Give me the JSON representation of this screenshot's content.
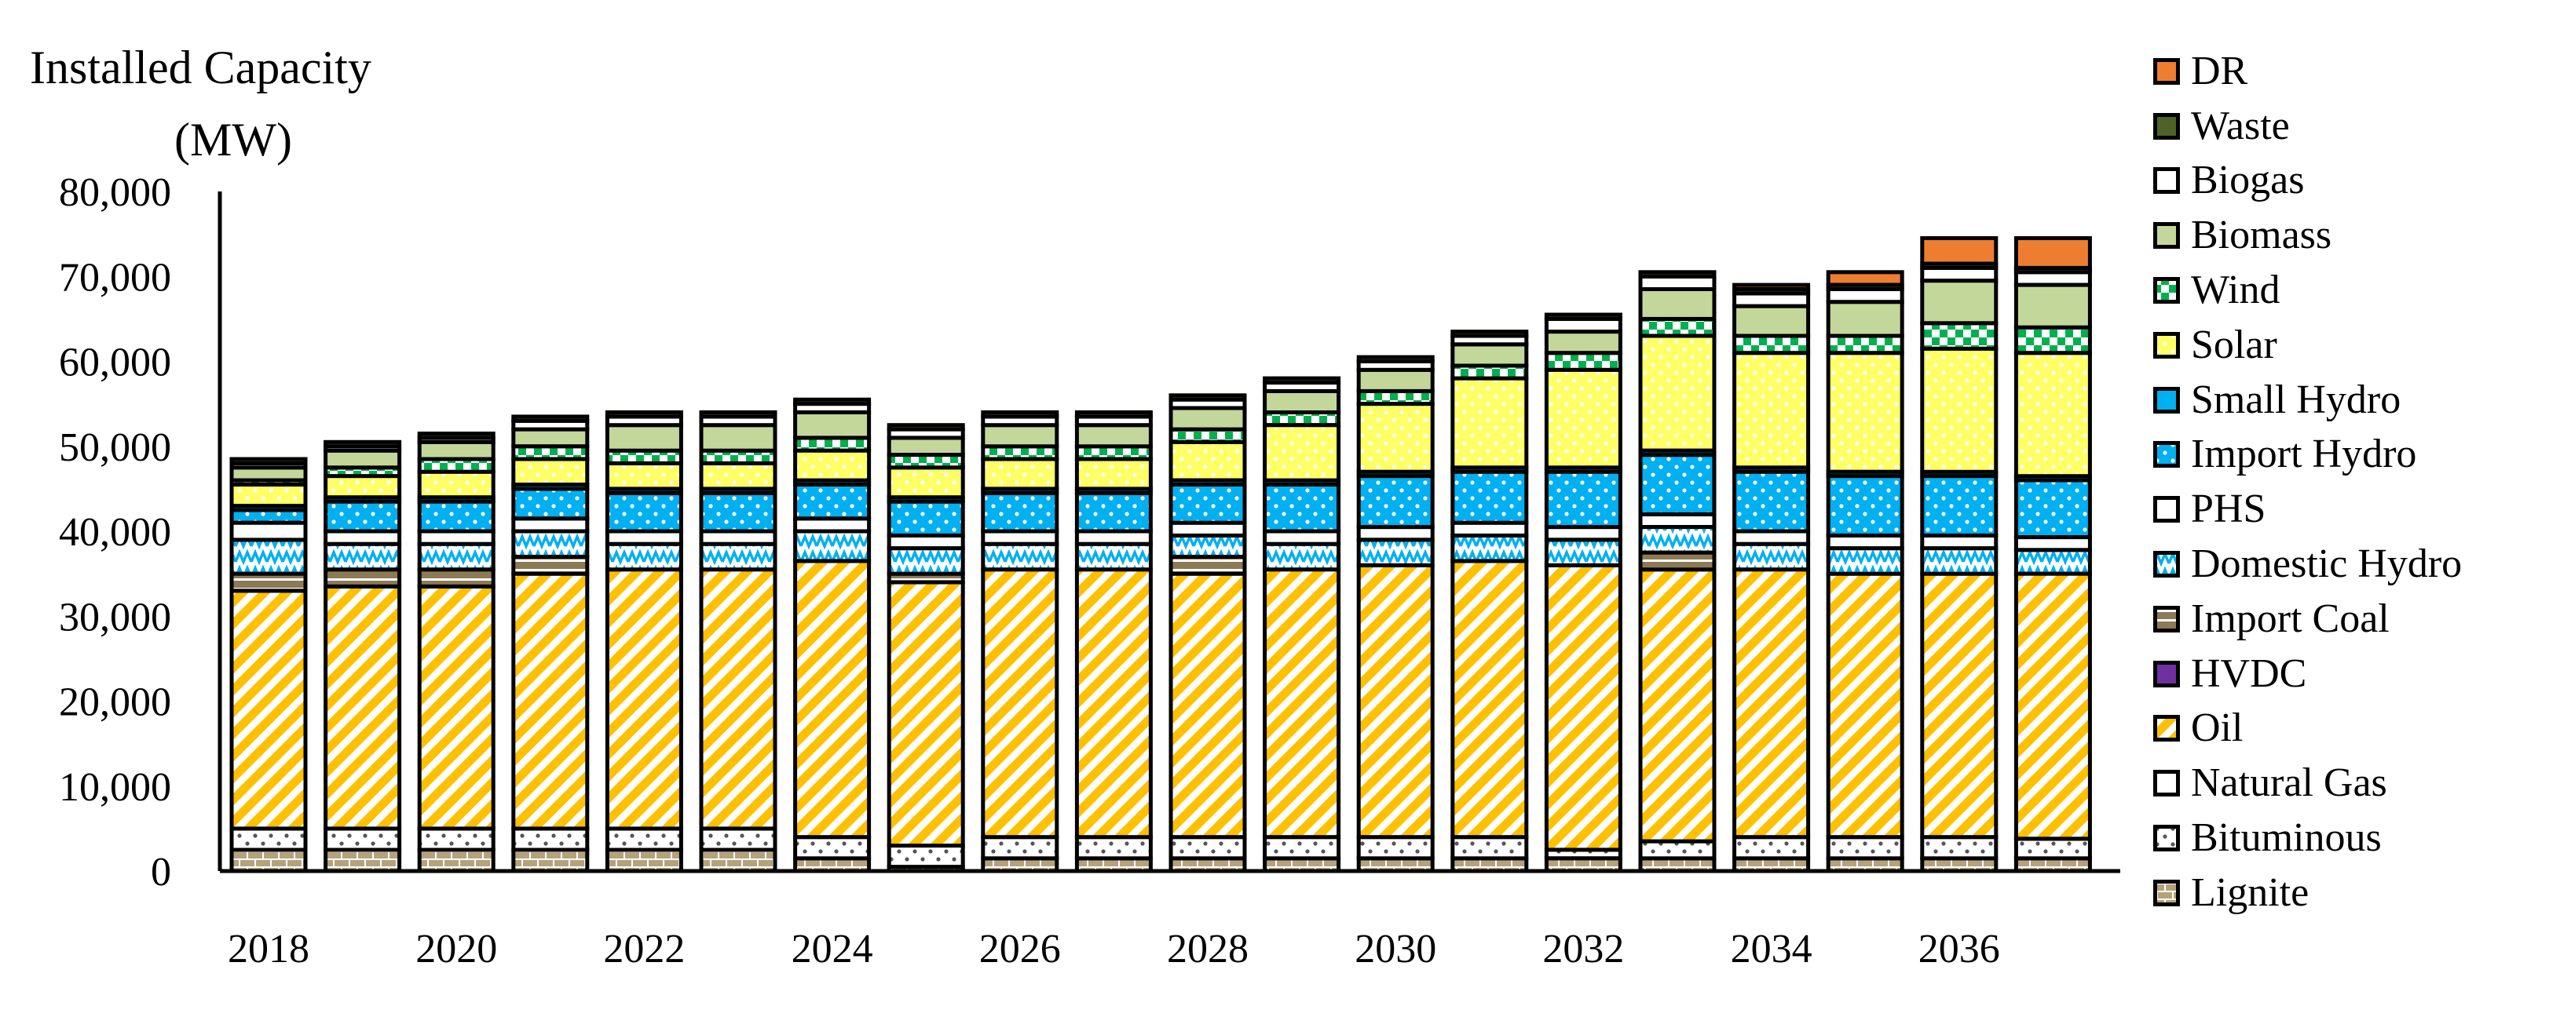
{
  "chart_data": {
    "type": "bar",
    "stacked": true,
    "ylabel_line1": "Installed Capacity",
    "ylabel_line2": "(MW)",
    "ylim": [
      0,
      80000
    ],
    "yticks": [
      "0",
      "10,000",
      "20,000",
      "30,000",
      "40,000",
      "50,000",
      "60,000",
      "70,000",
      "80,000"
    ],
    "xtick_labels": [
      "2018",
      "2020",
      "2022",
      "2024",
      "2026",
      "2028",
      "2030",
      "2032",
      "2034",
      "2036"
    ],
    "grid": false,
    "legend_position": "right",
    "categories": [
      "2018",
      "2019",
      "2020",
      "2021",
      "2022",
      "2023",
      "2024",
      "2025",
      "2026",
      "2027",
      "2028",
      "2029",
      "2030",
      "2031",
      "2032",
      "2033",
      "2034",
      "2035",
      "2036",
      "2037"
    ],
    "series": [
      {
        "name": "Lignite",
        "color": "#b5a27a",
        "pattern": "brick",
        "values": [
          2500,
          2500,
          2500,
          2500,
          2500,
          2500,
          1500,
          500,
          1500,
          1500,
          1500,
          1500,
          1500,
          1500,
          1500,
          1500,
          1500,
          1500,
          1500,
          1500
        ]
      },
      {
        "name": "Bituminous",
        "color": "#ffffff",
        "pattern": "dots",
        "values": [
          2500,
          2500,
          2500,
          2500,
          2500,
          2500,
          2500,
          2500,
          2500,
          2500,
          2500,
          2500,
          2500,
          2500,
          1000,
          2000,
          2500,
          2500,
          2500,
          2300
        ]
      },
      {
        "name": "Natural Gas",
        "color": "#ffffff",
        "pattern": "none",
        "values": [
          0,
          0,
          0,
          0,
          0,
          0,
          0,
          0,
          0,
          0,
          0,
          0,
          0,
          0,
          0,
          0,
          0,
          0,
          0,
          0
        ]
      },
      {
        "name": "Oil",
        "color": "#ffc000",
        "pattern": "diagonal",
        "values": [
          28000,
          28500,
          28500,
          30000,
          30500,
          30500,
          32500,
          31000,
          31500,
          31500,
          31000,
          31500,
          32000,
          32500,
          33500,
          32000,
          31500,
          31000,
          31000,
          31200
        ]
      },
      {
        "name": "HVDC",
        "color": "#7030a0",
        "pattern": "none",
        "values": [
          0,
          0,
          0,
          0,
          0,
          0,
          0,
          0,
          0,
          0,
          0,
          0,
          0,
          0,
          0,
          0,
          0,
          0,
          0,
          0
        ]
      },
      {
        "name": "Import Coal",
        "color": "#8c7a55",
        "pattern": "hlines",
        "values": [
          2000,
          2000,
          2000,
          2000,
          0,
          0,
          0,
          1000,
          0,
          0,
          2000,
          0,
          0,
          0,
          0,
          2000,
          0,
          0,
          0,
          0
        ]
      },
      {
        "name": "Domestic Hydro",
        "color": "#00b0f0",
        "pattern": "zigzag",
        "values": [
          4000,
          3000,
          3000,
          3000,
          3000,
          3000,
          3500,
          3000,
          3000,
          3000,
          2500,
          3000,
          3000,
          3000,
          3000,
          3000,
          3000,
          3000,
          3000,
          2800
        ]
      },
      {
        "name": "PHS",
        "color": "#ffffff",
        "pattern": "none",
        "values": [
          2000,
          1500,
          1500,
          1500,
          1500,
          1500,
          1500,
          1500,
          1500,
          1500,
          1500,
          1500,
          1500,
          1500,
          1500,
          1500,
          1500,
          1500,
          1500,
          1500
        ]
      },
      {
        "name": "Import Hydro",
        "color": "#00b0f0",
        "pattern": "dots",
        "values": [
          1500,
          3500,
          3500,
          3500,
          4500,
          4500,
          4000,
          4000,
          4500,
          4500,
          4500,
          5500,
          6000,
          6000,
          6500,
          7000,
          7000,
          7000,
          7000,
          6700
        ]
      },
      {
        "name": "Small Hydro",
        "color": "#00b0f0",
        "pattern": "none",
        "values": [
          500,
          500,
          500,
          500,
          500,
          500,
          500,
          500,
          500,
          500,
          500,
          500,
          500,
          500,
          500,
          500,
          500,
          500,
          500,
          500
        ]
      },
      {
        "name": "Solar",
        "color": "#ffff66",
        "pattern": "dots",
        "values": [
          2500,
          2500,
          3000,
          3000,
          3000,
          3000,
          3500,
          3500,
          3500,
          3500,
          4500,
          6500,
          8000,
          10500,
          11500,
          13500,
          13500,
          14000,
          14500,
          14500
        ]
      },
      {
        "name": "Wind",
        "color": "#00b050",
        "pattern": "checker",
        "values": [
          500,
          1000,
          1500,
          1500,
          1500,
          1500,
          1500,
          1500,
          1500,
          1500,
          1500,
          1500,
          1500,
          1500,
          2000,
          2000,
          2000,
          2000,
          3000,
          3000
        ]
      },
      {
        "name": "Biomass",
        "color": "#c4d79b",
        "pattern": "none",
        "values": [
          1500,
          2000,
          2000,
          2000,
          3000,
          3000,
          3000,
          2000,
          2500,
          2500,
          2500,
          2500,
          2500,
          2500,
          2500,
          3500,
          3500,
          4000,
          5000,
          5000
        ]
      },
      {
        "name": "Biogas",
        "color": "#ffffff",
        "pattern": "none",
        "values": [
          500,
          500,
          500,
          1000,
          1000,
          1000,
          1000,
          1000,
          1000,
          1000,
          1000,
          1000,
          1000,
          1000,
          1500,
          1500,
          1500,
          1500,
          1500,
          1500
        ]
      },
      {
        "name": "Waste",
        "color": "#4f6228",
        "pattern": "none",
        "values": [
          500,
          500,
          500,
          500,
          500,
          500,
          500,
          500,
          500,
          500,
          500,
          500,
          500,
          500,
          500,
          500,
          500,
          500,
          500,
          500
        ]
      },
      {
        "name": "DR",
        "color": "#ed7d31",
        "pattern": "none",
        "values": [
          0,
          0,
          0,
          0,
          0,
          0,
          0,
          0,
          0,
          0,
          0,
          0,
          0,
          0,
          0,
          0,
          500,
          1500,
          3000,
          3500
        ]
      }
    ]
  }
}
